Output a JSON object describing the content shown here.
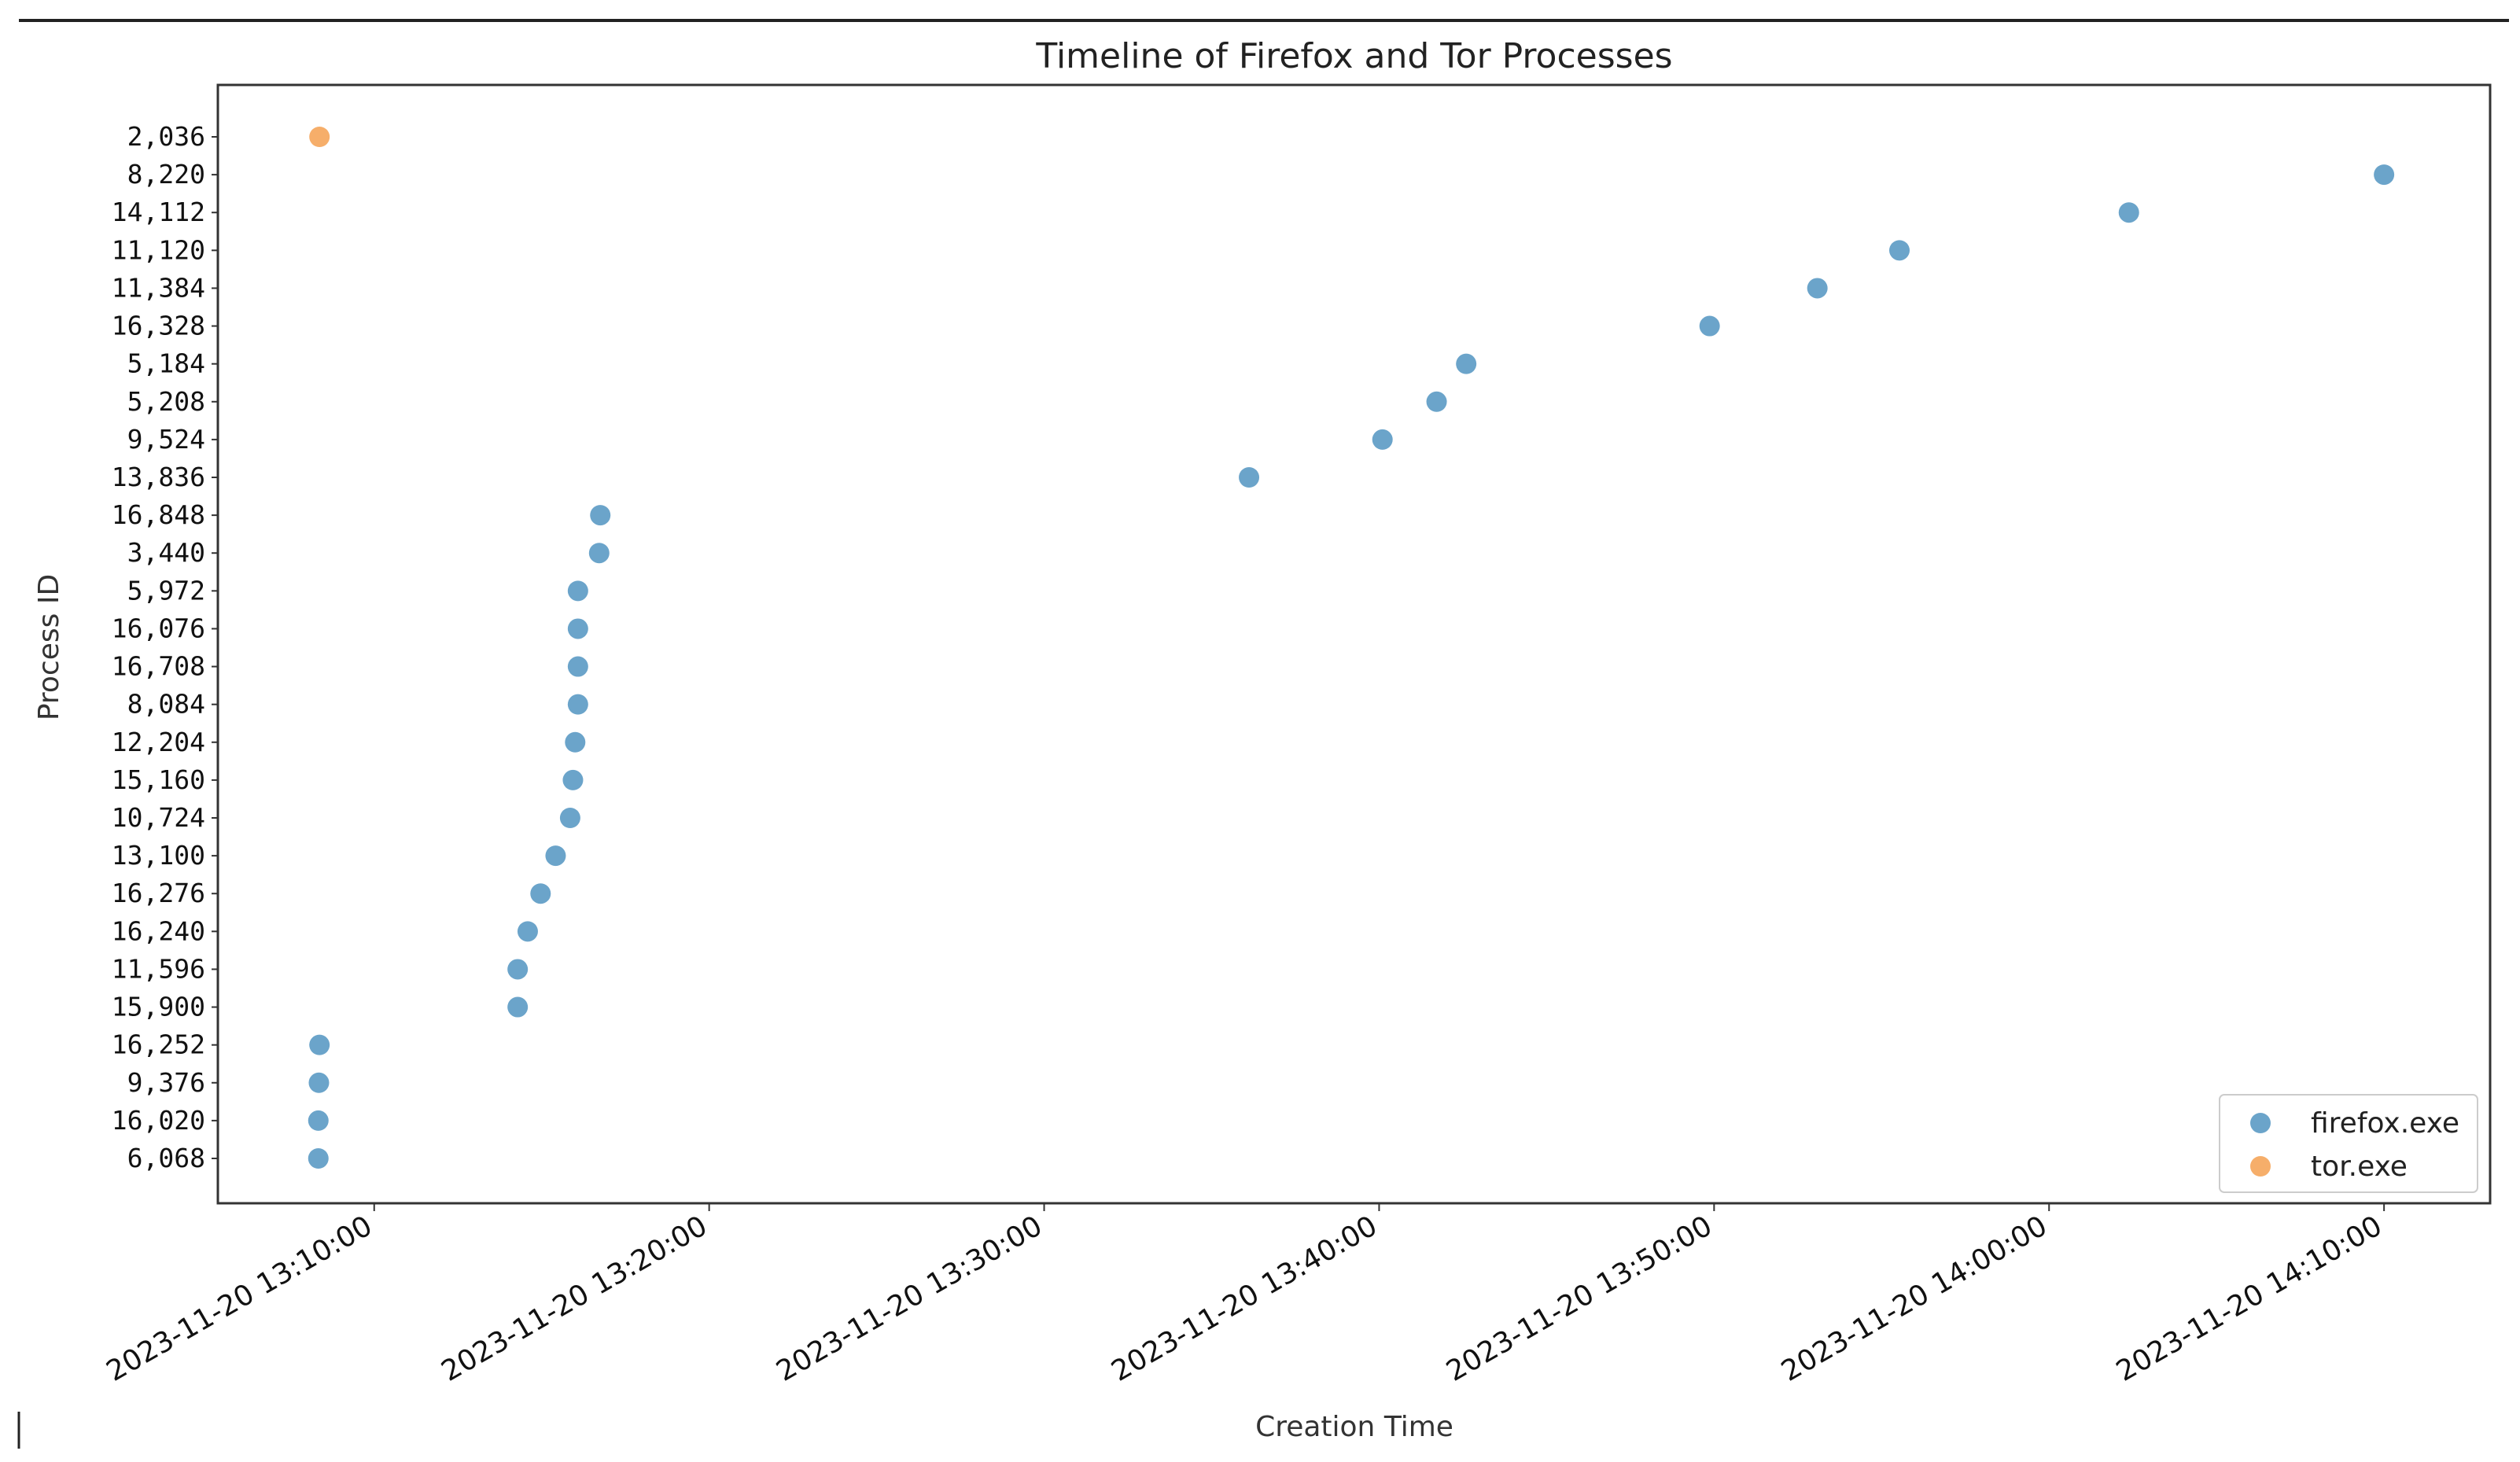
{
  "chart_data": {
    "type": "scatter",
    "title": "Timeline of Firefox and Tor Processes",
    "xlabel": "Creation Time",
    "ylabel": "Process ID",
    "xlim": [
      "2023-11-20 13:05:20",
      "2023-11-20 14:13:10"
    ],
    "x_ticks": [
      "2023-11-20 13:10:00",
      "2023-11-20 13:20:00",
      "2023-11-20 13:30:00",
      "2023-11-20 13:40:00",
      "2023-11-20 13:50:00",
      "2023-11-20 14:00:00",
      "2023-11-20 14:10:00"
    ],
    "y_categories": [
      "6,068",
      "16,020",
      "9,376",
      "16,252",
      "15,900",
      "11,596",
      "16,240",
      "16,276",
      "13,100",
      "10,724",
      "15,160",
      "12,204",
      "8,084",
      "16,708",
      "16,076",
      "5,972",
      "3,440",
      "16,848",
      "13,836",
      "9,524",
      "5,208",
      "5,184",
      "16,328",
      "11,384",
      "11,120",
      "14,112",
      "8,220",
      "2,036"
    ],
    "grid": false,
    "legend_position": "bottom-right",
    "series": [
      {
        "name": "firefox.exe",
        "color": "#5b9ac4",
        "points": [
          {
            "x": "2023-11-20 13:08:20",
            "y": "6,068"
          },
          {
            "x": "2023-11-20 13:08:20",
            "y": "16,020"
          },
          {
            "x": "2023-11-20 13:08:21",
            "y": "9,376"
          },
          {
            "x": "2023-11-20 13:08:22",
            "y": "16,252"
          },
          {
            "x": "2023-11-20 13:14:17",
            "y": "15,900"
          },
          {
            "x": "2023-11-20 13:14:17",
            "y": "11,596"
          },
          {
            "x": "2023-11-20 13:14:35",
            "y": "16,240"
          },
          {
            "x": "2023-11-20 13:14:58",
            "y": "16,276"
          },
          {
            "x": "2023-11-20 13:15:25",
            "y": "13,100"
          },
          {
            "x": "2023-11-20 13:15:51",
            "y": "10,724"
          },
          {
            "x": "2023-11-20 13:15:56",
            "y": "15,160"
          },
          {
            "x": "2023-11-20 13:16:00",
            "y": "12,204"
          },
          {
            "x": "2023-11-20 13:16:05",
            "y": "8,084"
          },
          {
            "x": "2023-11-20 13:16:05",
            "y": "16,708"
          },
          {
            "x": "2023-11-20 13:16:05",
            "y": "16,076"
          },
          {
            "x": "2023-11-20 13:16:05",
            "y": "5,972"
          },
          {
            "x": "2023-11-20 13:16:43",
            "y": "3,440"
          },
          {
            "x": "2023-11-20 13:16:45",
            "y": "16,848"
          },
          {
            "x": "2023-11-20 13:36:07",
            "y": "13,836"
          },
          {
            "x": "2023-11-20 13:40:06",
            "y": "9,524"
          },
          {
            "x": "2023-11-20 13:41:43",
            "y": "5,208"
          },
          {
            "x": "2023-11-20 13:42:36",
            "y": "5,184"
          },
          {
            "x": "2023-11-20 13:49:52",
            "y": "16,328"
          },
          {
            "x": "2023-11-20 13:53:05",
            "y": "11,384"
          },
          {
            "x": "2023-11-20 13:55:32",
            "y": "11,120"
          },
          {
            "x": "2023-11-20 14:02:23",
            "y": "14,112"
          },
          {
            "x": "2023-11-20 14:10:00",
            "y": "8,220"
          }
        ]
      },
      {
        "name": "tor.exe",
        "color": "#f5a55a",
        "points": [
          {
            "x": "2023-11-20 13:08:22",
            "y": "2,036"
          }
        ]
      }
    ]
  }
}
